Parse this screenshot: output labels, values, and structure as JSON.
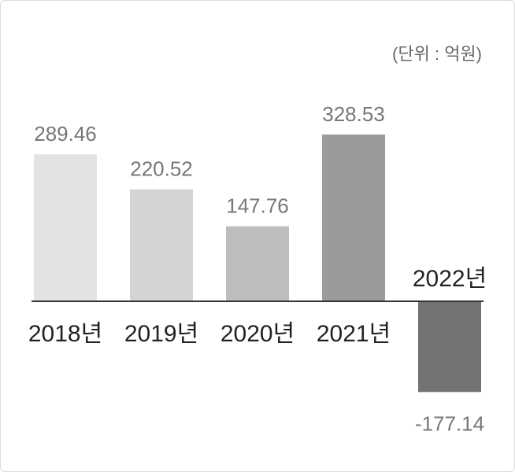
{
  "chart_data": {
    "type": "bar",
    "unit_note": "(단위 : 억원)",
    "categories": [
      "2018년",
      "2019년",
      "2020년",
      "2021년",
      "2022년"
    ],
    "values": [
      289.46,
      220.52,
      147.76,
      328.53,
      -177.14
    ],
    "value_labels": [
      "289.46",
      "220.52",
      "147.76",
      "328.53",
      "-177.14"
    ],
    "colors": [
      "#e3e3e3",
      "#d4d4d4",
      "#bdbdbd",
      "#9b9b9b",
      "#727272"
    ],
    "zero_line_color": "#333333",
    "grid": false,
    "legend": "none"
  }
}
